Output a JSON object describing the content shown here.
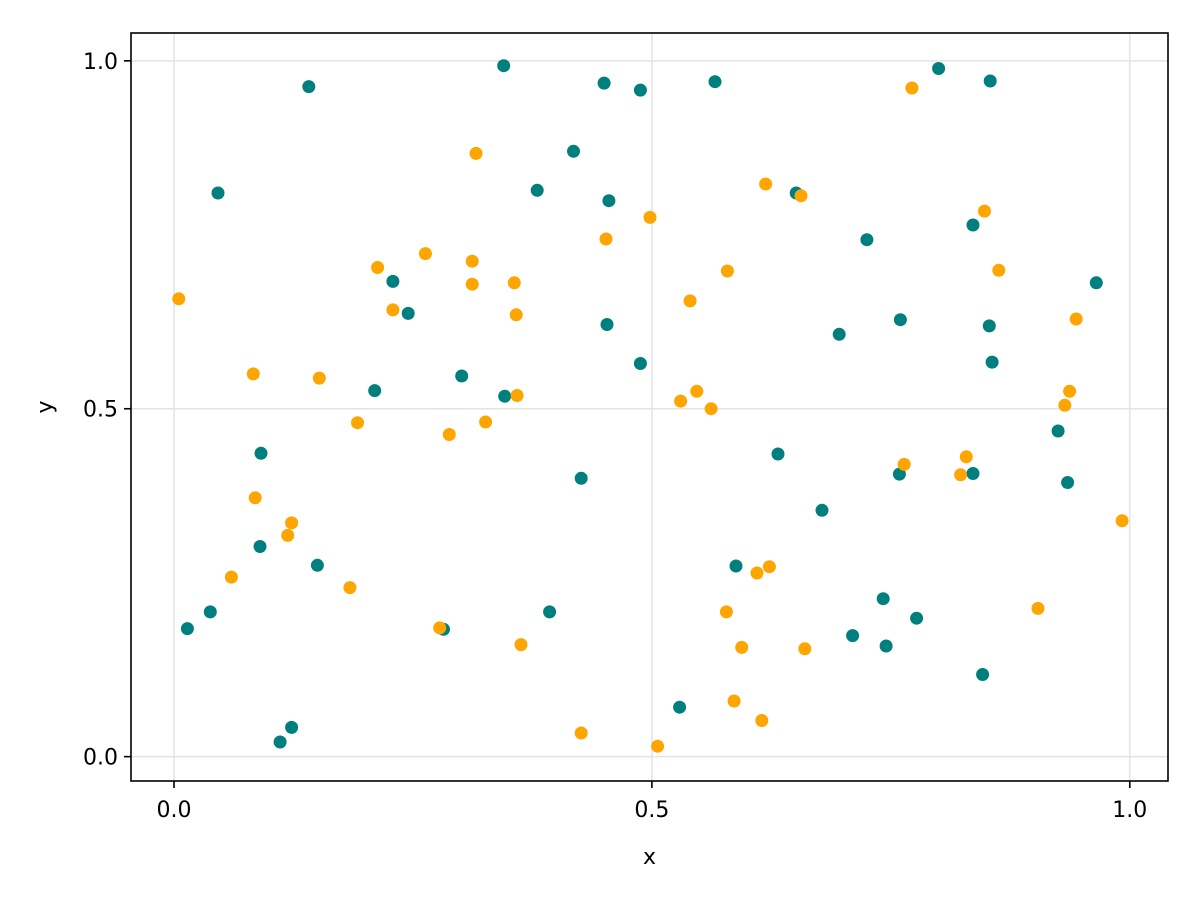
{
  "chart_data": {
    "type": "scatter",
    "xlabel": "x",
    "ylabel": "y",
    "xlim": [
      -0.045,
      1.04
    ],
    "ylim": [
      -0.035,
      1.04
    ],
    "xticks": [
      0.0,
      0.5,
      1.0
    ],
    "yticks": [
      0.0,
      0.5,
      1.0
    ],
    "xtick_labels": [
      "0.0",
      "0.5",
      "1.0"
    ],
    "ytick_labels": [
      "0.0",
      "0.5",
      "1.0"
    ],
    "grid": true,
    "legend": "none",
    "series": [
      {
        "color": "#007f7f",
        "points": [
          [
            0.014,
            0.184
          ],
          [
            0.038,
            0.208
          ],
          [
            0.046,
            0.81
          ],
          [
            0.091,
            0.436
          ],
          [
            0.09,
            0.302
          ],
          [
            0.111,
            0.021
          ],
          [
            0.123,
            0.042
          ],
          [
            0.141,
            0.963
          ],
          [
            0.15,
            0.275
          ],
          [
            0.21,
            0.526
          ],
          [
            0.229,
            0.683
          ],
          [
            0.245,
            0.637
          ],
          [
            0.282,
            0.183
          ],
          [
            0.301,
            0.547
          ],
          [
            0.345,
            0.993
          ],
          [
            0.346,
            0.518
          ],
          [
            0.38,
            0.814
          ],
          [
            0.393,
            0.208
          ],
          [
            0.418,
            0.87
          ],
          [
            0.426,
            0.4
          ],
          [
            0.45,
            0.968
          ],
          [
            0.455,
            0.799
          ],
          [
            0.453,
            0.621
          ],
          [
            0.488,
            0.958
          ],
          [
            0.488,
            0.565
          ],
          [
            0.529,
            0.071
          ],
          [
            0.566,
            0.97
          ],
          [
            0.588,
            0.274
          ],
          [
            0.632,
            0.435
          ],
          [
            0.651,
            0.81
          ],
          [
            0.678,
            0.354
          ],
          [
            0.696,
            0.607
          ],
          [
            0.71,
            0.174
          ],
          [
            0.725,
            0.743
          ],
          [
            0.742,
            0.227
          ],
          [
            0.745,
            0.159
          ],
          [
            0.759,
            0.406
          ],
          [
            0.76,
            0.628
          ],
          [
            0.777,
            0.199
          ],
          [
            0.8,
            0.989
          ],
          [
            0.836,
            0.764
          ],
          [
            0.836,
            0.407
          ],
          [
            0.846,
            0.118
          ],
          [
            0.853,
            0.619
          ],
          [
            0.854,
            0.971
          ],
          [
            0.856,
            0.567
          ],
          [
            0.925,
            0.468
          ],
          [
            0.935,
            0.394
          ],
          [
            0.965,
            0.681
          ]
        ]
      },
      {
        "color": "#ffa500",
        "points": [
          [
            0.005,
            0.658
          ],
          [
            0.06,
            0.258
          ],
          [
            0.083,
            0.55
          ],
          [
            0.085,
            0.372
          ],
          [
            0.119,
            0.318
          ],
          [
            0.123,
            0.336
          ],
          [
            0.152,
            0.544
          ],
          [
            0.184,
            0.243
          ],
          [
            0.192,
            0.48
          ],
          [
            0.213,
            0.703
          ],
          [
            0.229,
            0.642
          ],
          [
            0.263,
            0.723
          ],
          [
            0.278,
            0.185
          ],
          [
            0.288,
            0.463
          ],
          [
            0.312,
            0.712
          ],
          [
            0.312,
            0.679
          ],
          [
            0.316,
            0.867
          ],
          [
            0.326,
            0.481
          ],
          [
            0.356,
            0.681
          ],
          [
            0.358,
            0.635
          ],
          [
            0.359,
            0.519
          ],
          [
            0.363,
            0.161
          ],
          [
            0.426,
            0.034
          ],
          [
            0.452,
            0.744
          ],
          [
            0.498,
            0.775
          ],
          [
            0.506,
            0.015
          ],
          [
            0.53,
            0.511
          ],
          [
            0.54,
            0.655
          ],
          [
            0.547,
            0.525
          ],
          [
            0.562,
            0.5
          ],
          [
            0.578,
            0.208
          ],
          [
            0.579,
            0.698
          ],
          [
            0.586,
            0.08
          ],
          [
            0.594,
            0.157
          ],
          [
            0.61,
            0.264
          ],
          [
            0.615,
            0.052
          ],
          [
            0.619,
            0.823
          ],
          [
            0.623,
            0.273
          ],
          [
            0.656,
            0.806
          ],
          [
            0.66,
            0.155
          ],
          [
            0.764,
            0.42
          ],
          [
            0.772,
            0.961
          ],
          [
            0.823,
            0.405
          ],
          [
            0.829,
            0.431
          ],
          [
            0.848,
            0.784
          ],
          [
            0.863,
            0.699
          ],
          [
            0.904,
            0.213
          ],
          [
            0.932,
            0.505
          ],
          [
            0.937,
            0.525
          ],
          [
            0.944,
            0.629
          ],
          [
            0.992,
            0.339
          ]
        ]
      }
    ]
  }
}
